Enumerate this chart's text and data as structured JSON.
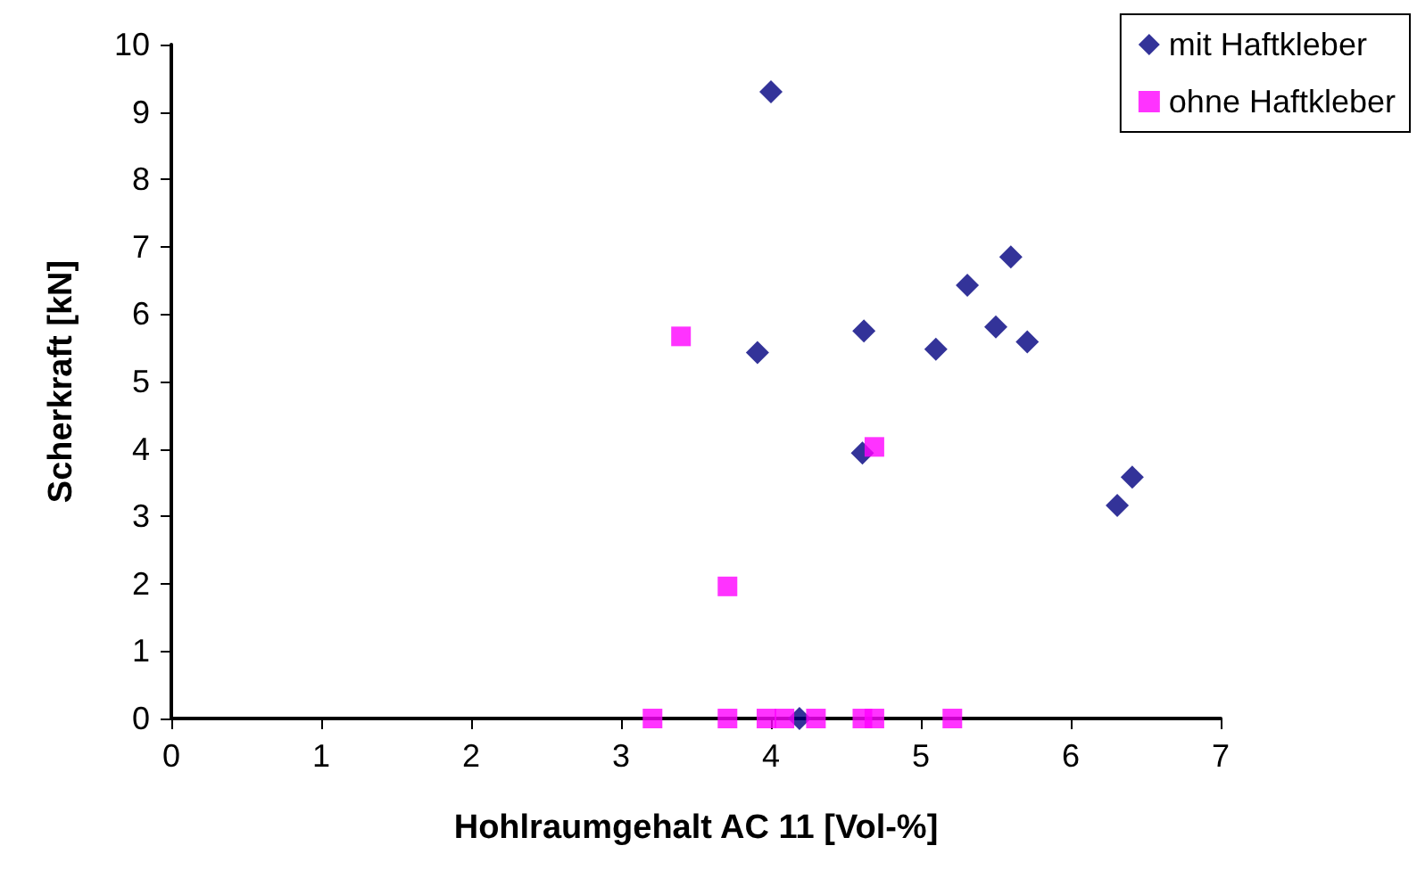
{
  "chart_data": {
    "type": "scatter",
    "xlabel": "Hohlraumgehalt AC 11 [Vol-%]",
    "ylabel": "Scherkraft [kN]",
    "xlim": [
      0,
      7
    ],
    "xticks": [
      0,
      1,
      2,
      3,
      4,
      5,
      6,
      7
    ],
    "ylim": [
      0,
      10
    ],
    "yticks": [
      0,
      1,
      2,
      3,
      4,
      5,
      6,
      7,
      8,
      9,
      10
    ],
    "grid": false,
    "legend": "top right",
    "series": [
      {
        "name": "mit Haftkleber",
        "color": "#000080",
        "marker": "diamond",
        "x": [
          4.0,
          5.6,
          5.31,
          4.62,
          5.5,
          5.1,
          5.71,
          3.91,
          4.61,
          6.41,
          6.31,
          4.19
        ],
        "values": [
          9.3,
          6.85,
          6.43,
          5.75,
          5.81,
          5.48,
          5.59,
          5.43,
          3.94,
          3.58,
          3.16,
          0
        ]
      },
      {
        "name": "ohne Haftkleber",
        "color": "#ff00ff",
        "marker": "square",
        "x": [
          3.4,
          4.69,
          3.71,
          3.21,
          3.71,
          3.97,
          4.09,
          4.3,
          4.61,
          4.69,
          5.21
        ],
        "values": [
          5.67,
          4.03,
          1.96,
          0,
          0,
          0,
          0,
          0,
          0,
          0,
          0
        ]
      }
    ]
  }
}
